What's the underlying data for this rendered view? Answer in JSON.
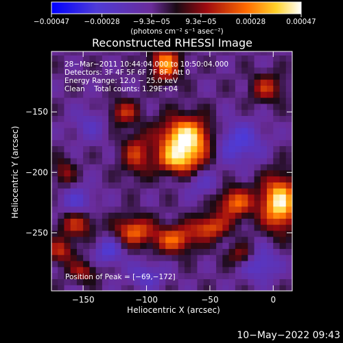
{
  "chart_data": {
    "type": "heatmap",
    "title": "Reconstructed RHESSI Image",
    "xlabel": "Heliocentric X (arcsec)",
    "ylabel": "Heliocentric Y (arcsec)",
    "xlim": [
      -175,
      15
    ],
    "ylim": [
      -298,
      -100
    ],
    "xticks": [
      -150,
      -100,
      -50,
      0
    ],
    "xtick_labels": [
      "−150",
      "−100",
      "−50",
      "0"
    ],
    "yticks": [
      -150,
      -200,
      -250
    ],
    "ytick_labels": [
      "−150",
      "−200",
      "−250"
    ],
    "colorbar": {
      "min": -0.00047,
      "max": 0.00047,
      "ticks": [
        -0.00047,
        -0.00028,
        -9.3e-05,
        9.3e-05,
        0.00028,
        0.00047
      ],
      "tick_labels": [
        "−0.00047",
        "−0.00028",
        "−9.3e−05",
        "9.3e−05",
        "0.00028",
        "0.00047"
      ],
      "units": "(photons cm⁻² s⁻¹ asec⁻²)",
      "colormap": "RHESSI blue-purple-red-yellow-white"
    },
    "grid": false,
    "annotations": [
      "28−Mar−2011 10:44:04.000 to 10:50:04.000",
      "Detectors: 3F 4F 5F 6F 7F 8F, Att 0",
      "Energy Range: 12.0 − 25.0 keV",
      "Clean    Total counts: 1.29E+04"
    ],
    "peak_label": "Position of Peak = [−69,−172]",
    "peak": {
      "x": -69,
      "y": -172,
      "value": 0.00047
    },
    "features": [
      {
        "x": -69,
        "y": -172,
        "sx": 14,
        "sy": 12,
        "value": 0.00047
      },
      {
        "x": -75,
        "y": -190,
        "sx": 12,
        "sy": 8,
        "value": 0.00024
      },
      {
        "x": -108,
        "y": -185,
        "sx": 8,
        "sy": 12,
        "value": 0.00016
      },
      {
        "x": -118,
        "y": -150,
        "sx": 8,
        "sy": 7,
        "value": 0.00016
      },
      {
        "x": -110,
        "y": -248,
        "sx": 10,
        "sy": 8,
        "value": 0.00025
      },
      {
        "x": -78,
        "y": -255,
        "sx": 12,
        "sy": 8,
        "value": 0.00024
      },
      {
        "x": -50,
        "y": -245,
        "sx": 10,
        "sy": 7,
        "value": 0.00022
      },
      {
        "x": -30,
        "y": -225,
        "sx": 10,
        "sy": 9,
        "value": 0.00025
      },
      {
        "x": 5,
        "y": -225,
        "sx": 10,
        "sy": 15,
        "value": 0.00044
      },
      {
        "x": -85,
        "y": -110,
        "sx": 8,
        "sy": 10,
        "value": 0.0003
      },
      {
        "x": -155,
        "y": -242,
        "sx": 10,
        "sy": 8,
        "value": 0.00018
      },
      {
        "x": -168,
        "y": -265,
        "sx": 8,
        "sy": 7,
        "value": 0.00015
      },
      {
        "x": -150,
        "y": -282,
        "sx": 8,
        "sy": 6,
        "value": 0.00012
      },
      {
        "x": -5,
        "y": -130,
        "sx": 9,
        "sy": 8,
        "value": 0.00015
      },
      {
        "x": -25,
        "y": -268,
        "sx": 8,
        "sy": 6,
        "value": 0.00012
      },
      {
        "x": -165,
        "y": -200,
        "sx": 6,
        "sy": 8,
        "value": 0.0001
      },
      {
        "x": -130,
        "y": -265,
        "sx": 8,
        "sy": 8,
        "value": -0.00028
      },
      {
        "x": -28,
        "y": -175,
        "sx": 14,
        "sy": 12,
        "value": -0.0003
      },
      {
        "x": -155,
        "y": -225,
        "sx": 10,
        "sy": 10,
        "value": -0.00025
      },
      {
        "x": -10,
        "y": -275,
        "sx": 10,
        "sy": 10,
        "value": -0.00028
      },
      {
        "x": -100,
        "y": -285,
        "sx": 10,
        "sy": 8,
        "value": -0.00024
      },
      {
        "x": -55,
        "y": -210,
        "sx": 10,
        "sy": 8,
        "value": -0.0002
      },
      {
        "x": -145,
        "y": -160,
        "sx": 10,
        "sy": 10,
        "value": -0.0002
      }
    ]
  },
  "footer": {
    "timestamp": "10−May−2022 09:43"
  }
}
